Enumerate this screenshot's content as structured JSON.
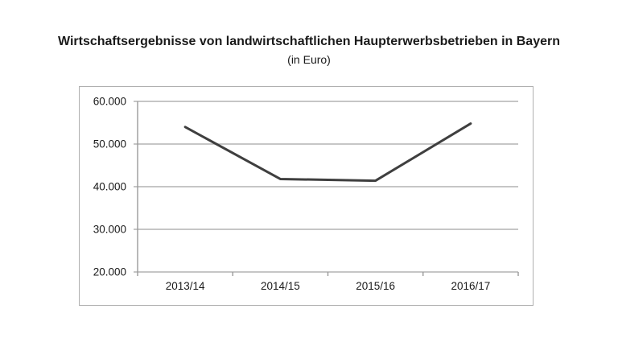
{
  "colors": {
    "text": "#1a1a1a",
    "line": "#3f3f3f",
    "grid": "#b3b3b3",
    "axis": "#9a9a9a",
    "frame_border": "#b0b0b0",
    "background": "#ffffff"
  },
  "chart_data": {
    "type": "line",
    "title": "Wirtschaftsergebnisse von landwirtschaftlichen Haupterwerbsbetrieben in Bayern",
    "subtitle": "(in Euro)",
    "categories": [
      "2013/14",
      "2014/15",
      "2015/16",
      "2016/17"
    ],
    "values": [
      54000,
      41800,
      41400,
      54800
    ],
    "unit": "Euro",
    "xlabel": "",
    "ylabel": "",
    "ylim": [
      20000,
      60000
    ],
    "ytick_interval": 10000,
    "yticks": [
      60000,
      50000,
      40000,
      30000,
      20000
    ],
    "ytick_labels": [
      "60.000",
      "50.000",
      "40.000",
      "30.000",
      "20.000"
    ],
    "grid": "horizontal",
    "legend": "none"
  }
}
